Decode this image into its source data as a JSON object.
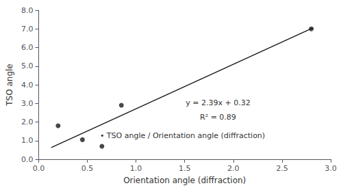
{
  "chart_data": {
    "type": "scatter",
    "xlabel": "Orientation angle (diffraction)",
    "ylabel": "TSO angle",
    "xlim": [
      0.0,
      3.0
    ],
    "ylim": [
      0.0,
      8.0
    ],
    "xticks": [
      {
        "value": 0,
        "label": "0.0"
      },
      0.5,
      {
        "value": 1,
        "label": "1.0"
      },
      1.5,
      {
        "value": 2,
        "label": "2.0"
      },
      2.5,
      {
        "value": 3,
        "label": "3.0"
      }
    ],
    "yticks": [
      {
        "value": 0,
        "label": "0.0"
      },
      {
        "value": 1,
        "label": "1.0"
      },
      {
        "value": 2,
        "label": "2.0"
      },
      {
        "value": 3,
        "label": "3.0"
      },
      {
        "value": 4,
        "label": "4.0"
      },
      {
        "value": 5,
        "label": "5.0"
      },
      {
        "value": 6,
        "label": "6.0"
      },
      {
        "value": 7,
        "label": "7.0"
      },
      {
        "value": 8,
        "label": "8.0"
      }
    ],
    "grid": false,
    "series": [
      {
        "type": "line",
        "color": "#1a1a1a",
        "x": [
          0.13,
          2.82
        ],
        "values": [
          0.6307,
          7.0598
        ]
      },
      {
        "type": "scatter",
        "color": "#1a1a1a",
        "x": [
          0.2,
          0.45,
          0.65,
          0.85,
          2.8
        ],
        "values": [
          1.8,
          1.05,
          0.7,
          2.9,
          7.0
        ]
      }
    ],
    "annotations": [
      "y = 2.39x + 0.32",
      "R² = 0.89",
      "• TSO angle / Orientation angle (diffraction)"
    ]
  }
}
